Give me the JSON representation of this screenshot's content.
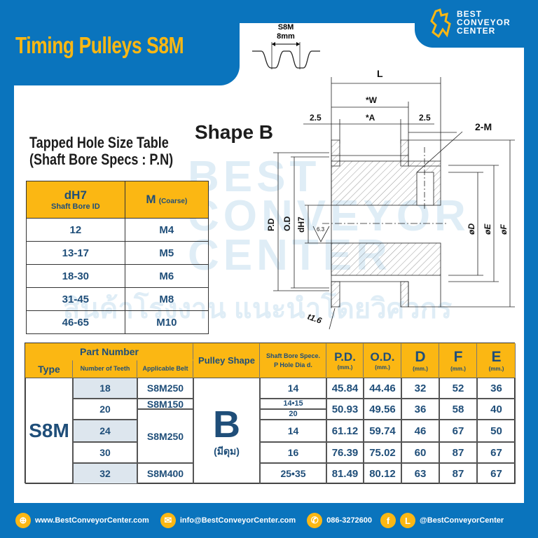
{
  "header": {
    "title": "Timing Pulleys S8M",
    "brand": "BEST CONVEYOR CENTER",
    "brand_lines": [
      "BEST",
      "CONVEYOR",
      "CENTER"
    ]
  },
  "watermark": {
    "brand": "BEST CONVEYOR CENTER",
    "thai": "สินค้าโรงงาน แนะนำโดยวิศวกร"
  },
  "belt_profile": {
    "name": "S8M",
    "pitch": "8mm"
  },
  "drawing": {
    "title": "Shape B",
    "L": "L",
    "W": "*W",
    "A": "*A",
    "left_gap": "2.5",
    "right_gap": "2.5",
    "tap": "2-M",
    "pd": "P.D",
    "od": "O.D",
    "dh7": "dH7",
    "rough": "6.3",
    "flange": "t1.6",
    "d": "øD",
    "e": "øE",
    "f": "øF"
  },
  "tapped_table": {
    "title_line1": "Tapped Hole Size Table",
    "title_line2": "(Shaft Bore Specs : P.N)",
    "col1": "dH7",
    "col1_sub": "Shaft Bore ID",
    "col2": "M",
    "col2_sub": "(Coarse)",
    "rows": [
      [
        "12",
        "M4"
      ],
      [
        "13-17",
        "M5"
      ],
      [
        "18-30",
        "M6"
      ],
      [
        "31-45",
        "M8"
      ],
      [
        "46-65",
        "M10"
      ]
    ]
  },
  "spec_table": {
    "headers": {
      "part_number": "Part Number",
      "type": "Type",
      "teeth": "Number of Teeth",
      "belt": "Applicable Belt",
      "shape": "Pulley Shape",
      "bore": "Shaft Bore Spece.",
      "bore2": "P Hole Dia d.",
      "pd": "P.D.",
      "od": "O.D.",
      "d": "D",
      "f": "F",
      "e": "E",
      "unit": "(mm.)"
    },
    "type": "S8M",
    "shape": "B",
    "shape_note": "(มีดุม)",
    "teeth": [
      "18",
      "20",
      "24",
      "30",
      "32"
    ],
    "belts": [
      "S8M250",
      "S8M150",
      "S8M250",
      "S8M400"
    ],
    "bores": [
      "14",
      "14•15",
      "20",
      "14",
      "16",
      "25•35"
    ],
    "rows": [
      {
        "pd": "45.84",
        "od": "44.46",
        "d": "32",
        "f": "52",
        "e": "36"
      },
      {
        "pd": "50.93",
        "od": "49.56",
        "d": "36",
        "f": "58",
        "e": "40"
      },
      {
        "pd": "61.12",
        "od": "59.74",
        "d": "46",
        "f": "67",
        "e": "50"
      },
      {
        "pd": "76.39",
        "od": "75.02",
        "d": "60",
        "f": "87",
        "e": "67"
      },
      {
        "pd": "81.49",
        "od": "80.12",
        "d": "63",
        "f": "87",
        "e": "67"
      }
    ]
  },
  "footer": {
    "website": "www.BestConveyorCenter.com",
    "email": "info@BestConveyorCenter.com",
    "phone": "086-3272600",
    "social": "@BestConveyorCenter",
    "line_letter": "L",
    "fb_letter": "f"
  },
  "colors": {
    "blue": "#0a74bd",
    "yellow": "#fbb713",
    "text": "#1f4e79"
  }
}
